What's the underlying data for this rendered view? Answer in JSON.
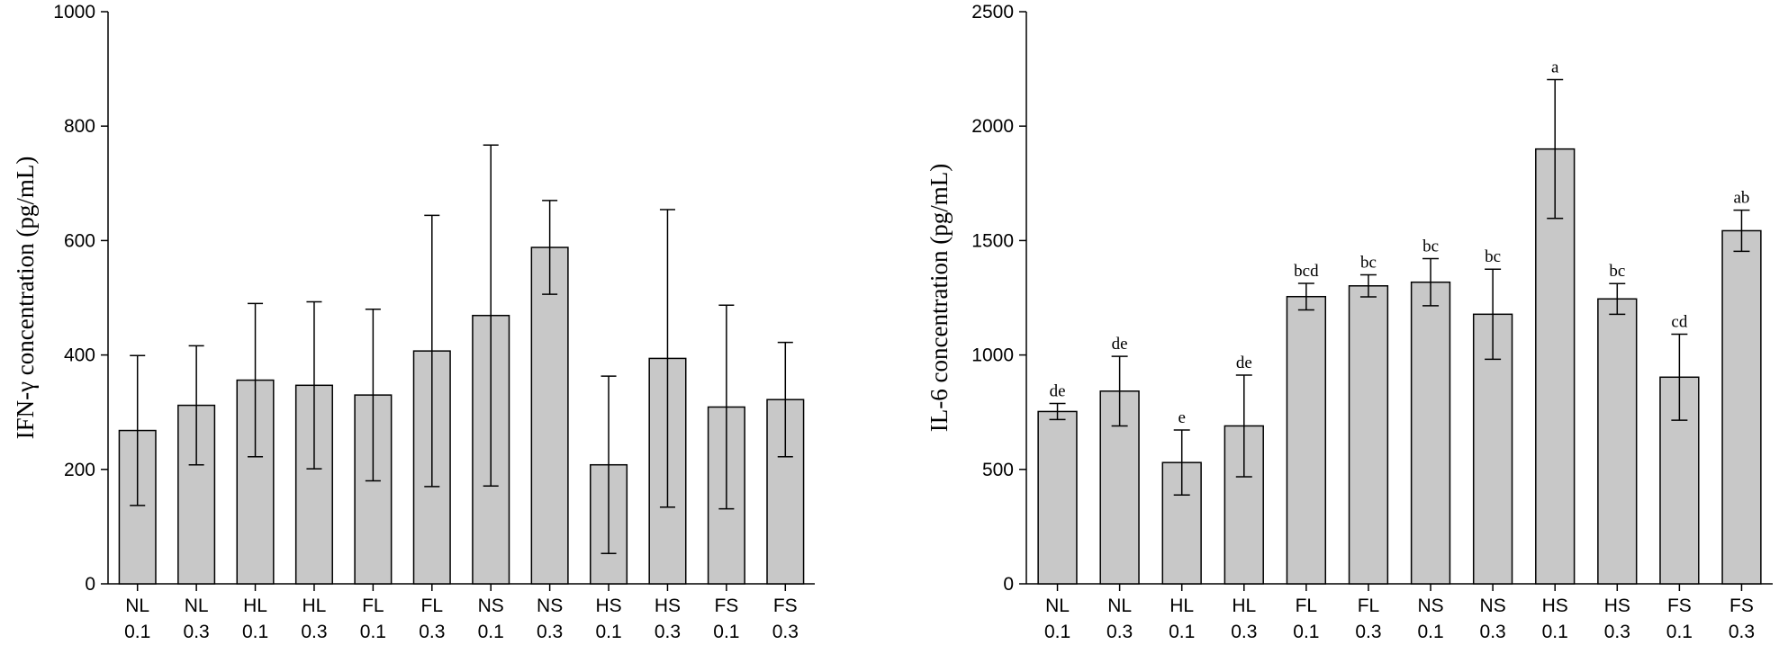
{
  "chart_data": [
    {
      "type": "bar",
      "categories": [
        [
          "NL",
          "0.1"
        ],
        [
          "NL",
          "0.3"
        ],
        [
          "HL",
          "0.1"
        ],
        [
          "HL",
          "0.3"
        ],
        [
          "FL",
          "0.1"
        ],
        [
          "FL",
          "0.3"
        ],
        [
          "NS",
          "0.1"
        ],
        [
          "NS",
          "0.3"
        ],
        [
          "HS",
          "0.1"
        ],
        [
          "HS",
          "0.3"
        ],
        [
          "FS",
          "0.1"
        ],
        [
          "FS",
          "0.3"
        ]
      ],
      "values": [
        268,
        312,
        356,
        347,
        330,
        407,
        469,
        588,
        208,
        394,
        309,
        322
      ],
      "errors": [
        131,
        104,
        134,
        146,
        150,
        237,
        298,
        82,
        155,
        260,
        178,
        100
      ],
      "significance": [],
      "title": "",
      "xlabel": "",
      "ylabel": "IFN-γ concentration (pg/mL)",
      "ylim": [
        0,
        1000
      ],
      "yticks": [
        0,
        200,
        400,
        600,
        800,
        1000
      ],
      "bar_color": "#c8c8c8"
    },
    {
      "type": "bar",
      "categories": [
        [
          "NL",
          "0.1"
        ],
        [
          "NL",
          "0.3"
        ],
        [
          "HL",
          "0.1"
        ],
        [
          "HL",
          "0.3"
        ],
        [
          "FL",
          "0.1"
        ],
        [
          "FL",
          "0.3"
        ],
        [
          "NS",
          "0.1"
        ],
        [
          "NS",
          "0.3"
        ],
        [
          "HS",
          "0.1"
        ],
        [
          "HS",
          "0.3"
        ],
        [
          "FS",
          "0.1"
        ],
        [
          "FS",
          "0.3"
        ]
      ],
      "values": [
        753,
        842,
        530,
        690,
        1255,
        1302,
        1318,
        1178,
        1900,
        1245,
        903,
        1543
      ],
      "errors": [
        35,
        152,
        142,
        222,
        58,
        48,
        103,
        197,
        303,
        67,
        188,
        90
      ],
      "significance": [
        "de",
        "de",
        "e",
        "de",
        "bcd",
        "bc",
        "bc",
        "bc",
        "a",
        "bc",
        "cd",
        "ab"
      ],
      "title": "",
      "xlabel": "",
      "ylabel": "IL-6 concentration (pg/mL)",
      "ylim": [
        0,
        2500
      ],
      "yticks": [
        0,
        500,
        1000,
        1500,
        2000,
        2500
      ],
      "bar_color": "#c8c8c8"
    }
  ]
}
